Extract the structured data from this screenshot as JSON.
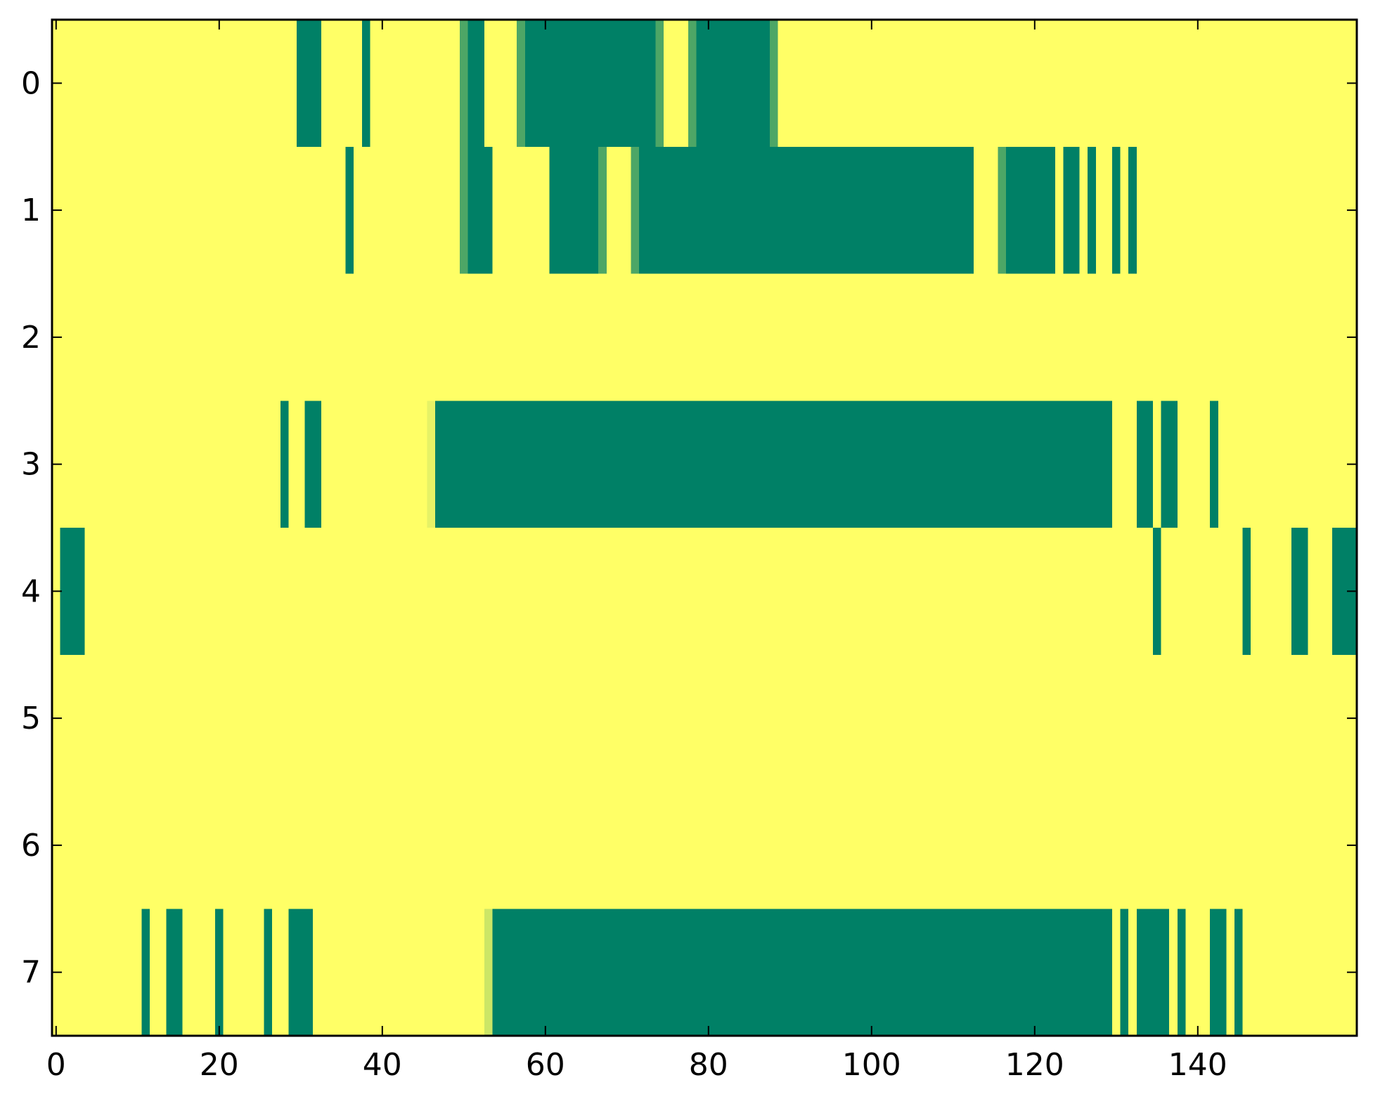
{
  "chart_data": {
    "type": "heatmap",
    "title": "",
    "xlabel": "",
    "ylabel": "",
    "xlim": [
      -0.5,
      159.5
    ],
    "ylim": [
      7.5,
      -0.5
    ],
    "grid": false,
    "legend": "none",
    "colormap": {
      "low": "#ffff66",
      "high": "#008066",
      "mid_light": "#6bb36a",
      "mid_pale": "#e9f069"
    },
    "background_value": 0,
    "x_ticks": [
      0,
      20,
      40,
      60,
      80,
      100,
      120,
      140
    ],
    "y_ticks": [
      0,
      1,
      2,
      3,
      4,
      5,
      6,
      7
    ],
    "x_tick_labels": [
      "0",
      "20",
      "40",
      "60",
      "80",
      "100",
      "120",
      "140"
    ],
    "y_tick_labels": [
      "0",
      "1",
      "2",
      "3",
      "4",
      "5",
      "6",
      "7"
    ],
    "rows": [
      {
        "y": 0,
        "segments": [
          [
            30,
            32,
            1.0
          ],
          [
            38,
            38,
            1.0
          ],
          [
            50,
            50,
            0.7
          ],
          [
            51,
            52,
            1.0
          ],
          [
            57,
            57,
            0.7
          ],
          [
            58,
            73,
            1.0
          ],
          [
            74,
            74,
            0.7
          ],
          [
            78,
            78,
            0.7
          ],
          [
            79,
            87,
            1.0
          ],
          [
            88,
            88,
            0.7
          ]
        ]
      },
      {
        "y": 1,
        "segments": [
          [
            36,
            36,
            1.0
          ],
          [
            50,
            50,
            0.7
          ],
          [
            51,
            53,
            1.0
          ],
          [
            61,
            66,
            1.0
          ],
          [
            67,
            67,
            0.7
          ],
          [
            71,
            71,
            0.7
          ],
          [
            72,
            112,
            1.0
          ],
          [
            116,
            116,
            0.7
          ],
          [
            117,
            122,
            1.0
          ],
          [
            124,
            125,
            1.0
          ],
          [
            127,
            127,
            1.0
          ],
          [
            130,
            130,
            1.0
          ],
          [
            132,
            132,
            1.0
          ]
        ]
      },
      {
        "y": 2,
        "segments": []
      },
      {
        "y": 3,
        "segments": [
          [
            28,
            28,
            1.0
          ],
          [
            31,
            32,
            1.0
          ],
          [
            46,
            46,
            0.1
          ],
          [
            47,
            129,
            1.0
          ],
          [
            133,
            134,
            1.0
          ],
          [
            136,
            137,
            1.0
          ],
          [
            142,
            142,
            1.0
          ]
        ]
      },
      {
        "y": 4,
        "segments": [
          [
            1,
            3,
            1.0
          ],
          [
            135,
            135,
            1.0
          ],
          [
            146,
            146,
            1.0
          ],
          [
            152,
            153,
            1.0
          ],
          [
            157,
            159,
            1.0
          ]
        ]
      },
      {
        "y": 5,
        "segments": []
      },
      {
        "y": 6,
        "segments": []
      },
      {
        "y": 7,
        "segments": [
          [
            11,
            11,
            1.0
          ],
          [
            14,
            15,
            1.0
          ],
          [
            20,
            20,
            1.0
          ],
          [
            26,
            26,
            1.0
          ],
          [
            29,
            31,
            1.0
          ],
          [
            53,
            53,
            0.2
          ],
          [
            54,
            129,
            1.0
          ],
          [
            131,
            131,
            1.0
          ],
          [
            133,
            136,
            1.0
          ],
          [
            138,
            138,
            1.0
          ],
          [
            142,
            143,
            1.0
          ],
          [
            145,
            145,
            1.0
          ]
        ]
      }
    ]
  }
}
